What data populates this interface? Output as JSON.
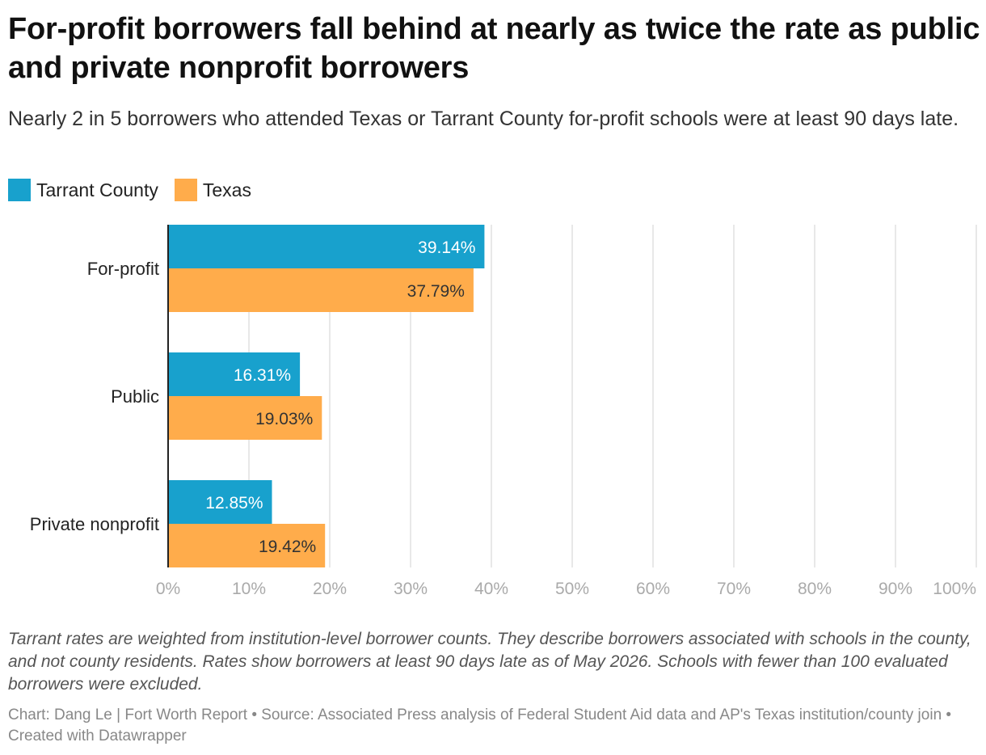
{
  "title": "For-profit borrowers fall behind at nearly as twice the rate as public and private nonprofit borrowers",
  "subtitle": "Nearly 2 in 5 borrowers who attended Texas or Tarrant County for-profit schools were at least 90 days late.",
  "notes": "Tarrant rates are weighted from institution-level borrower counts. They describe borrowers associated with schools in the county, and not county residents. Rates show borrowers at least 90 days late as of May 2026. Schools with fewer than 100 evaluated borrowers were excluded.",
  "credits": "Chart: Dang Le | Fort Worth Report • Source: Associated Press analysis of Federal Student Aid data and AP's Texas institution/county join • Created with Datawrapper",
  "colors": {
    "tarrant": "#18a1cd",
    "texas": "#ffac4b",
    "grid": "#e0e0e0",
    "axis": "#222222",
    "tick": "#aaaaaa"
  },
  "chart_data": {
    "type": "bar",
    "orientation": "horizontal",
    "categories": [
      "For-profit",
      "Public",
      "Private nonprofit"
    ],
    "series": [
      {
        "name": "Tarrant County",
        "values": [
          39.14,
          16.31,
          12.85
        ],
        "labels": [
          "39.14%",
          "16.31%",
          "12.85%"
        ]
      },
      {
        "name": "Texas",
        "values": [
          37.79,
          19.03,
          19.42
        ],
        "labels": [
          "37.79%",
          "19.03%",
          "19.42%"
        ]
      }
    ],
    "xlim": [
      0,
      100
    ],
    "xticks": [
      0,
      10,
      20,
      30,
      40,
      50,
      60,
      70,
      80,
      90,
      100
    ],
    "xtick_labels": [
      "0%",
      "10%",
      "20%",
      "30%",
      "40%",
      "50%",
      "60%",
      "70%",
      "80%",
      "90%",
      "100%"
    ],
    "grid": true,
    "legend_position": "top-left"
  }
}
